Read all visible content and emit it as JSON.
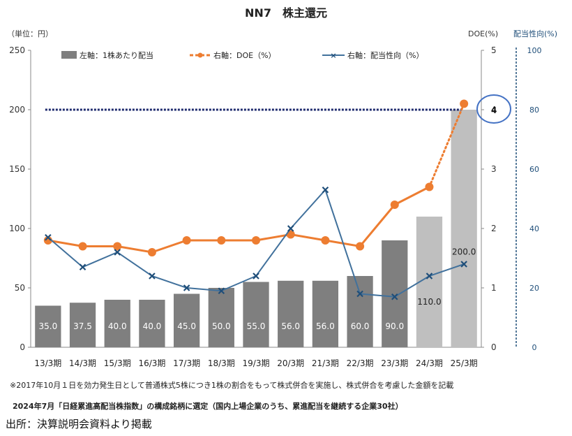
{
  "chart_data": {
    "type": "bar",
    "title": "NN7　株主還元",
    "unit_label": "（単位：円）",
    "y2_label": "DOE(%)",
    "y3_label": "配当性向(%)",
    "categories": [
      "13/3期",
      "14/3期",
      "15/3期",
      "16/3期",
      "17/3期",
      "18/3期",
      "19/3期",
      "20/3期",
      "21/3期",
      "22/3期",
      "23/3期",
      "24/3期",
      "25/3期"
    ],
    "series": [
      {
        "name": "左軸：1株あたり配当",
        "type": "bar",
        "axis": "left",
        "values": [
          35.0,
          37.5,
          40.0,
          40.0,
          45.0,
          50.0,
          55.0,
          56.0,
          56.0,
          60.0,
          90.0,
          110.0,
          200.0
        ],
        "value_labels": [
          "35.0",
          "37.5",
          "40.0",
          "40.0",
          "45.0",
          "50.0",
          "55.0",
          "56.0",
          "56.0",
          "60.0",
          "90.0",
          "110.0",
          "200.0"
        ]
      },
      {
        "name": "右軸：DOE（%）",
        "type": "line",
        "axis": "right",
        "values": [
          1.8,
          1.7,
          1.7,
          1.6,
          1.8,
          1.8,
          1.8,
          1.9,
          1.8,
          1.7,
          2.4,
          2.7,
          4.1
        ]
      },
      {
        "name": "右軸：配当性向（%）",
        "type": "line",
        "axis": "right2",
        "values": [
          37,
          27,
          32,
          24,
          20,
          19,
          24,
          40,
          53,
          18,
          17,
          24,
          28
        ]
      }
    ],
    "target_line": {
      "value": 4,
      "label": "4"
    },
    "ylim_left": [
      0,
      250
    ],
    "yticks_left": [
      0,
      50,
      100,
      150,
      200,
      250
    ],
    "ylim_right": [
      0,
      5
    ],
    "yticks_right": [
      0,
      1,
      2,
      3,
      4,
      5
    ],
    "ylim_right2": [
      0,
      100
    ],
    "yticks_right2": [
      0,
      20,
      40,
      60,
      80,
      100
    ],
    "legend_position": "top"
  },
  "colors": {
    "bar_dark": "#7f7f7f",
    "bar_light": "#bfbfbf",
    "doe_line": "#ed7d31",
    "payout_line": "#41719c",
    "target_line": "#1f2b6e",
    "right2_axis": "#1f4e79",
    "highlight_circle": "#4472c4"
  },
  "footnotes": {
    "note1": "※2017年10月１日を効力発生日として普通株式5株につき1株の割合をもって株式併合を実施し、株式併合を考慮した金額を記載",
    "note2": "2024年7月「日経累進高配当株指数」の構成銘柄に選定（国内上場企業のうち、累進配当を継続する企業30社）",
    "source": "出所：決算説明会資料より掲載"
  }
}
